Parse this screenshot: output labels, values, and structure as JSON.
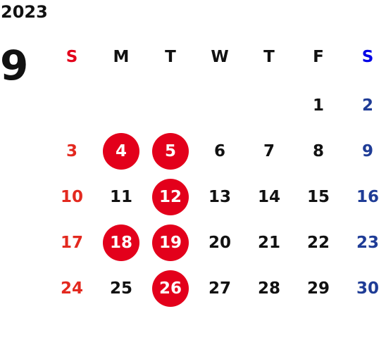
{
  "year": "2023",
  "month": "9",
  "weekdays": [
    {
      "label": "S",
      "kind": "sun"
    },
    {
      "label": "M",
      "kind": "wd"
    },
    {
      "label": "T",
      "kind": "wd"
    },
    {
      "label": "W",
      "kind": "wd"
    },
    {
      "label": "T",
      "kind": "wd"
    },
    {
      "label": "F",
      "kind": "wd"
    },
    {
      "label": "S",
      "kind": "sat"
    }
  ],
  "weeks": [
    [
      "",
      "",
      "",
      "",
      "",
      "1",
      "2"
    ],
    [
      "3",
      "4",
      "5",
      "6",
      "7",
      "8",
      "9"
    ],
    [
      "10",
      "11",
      "12",
      "13",
      "14",
      "15",
      "16"
    ],
    [
      "17",
      "18",
      "19",
      "20",
      "21",
      "22",
      "23"
    ],
    [
      "24",
      "25",
      "26",
      "27",
      "28",
      "29",
      "30"
    ]
  ],
  "highlighted_days": [
    "4",
    "5",
    "12",
    "18",
    "19",
    "26"
  ],
  "colors": {
    "text": "#111111",
    "sunday_header": "#e3001b",
    "saturday_header": "#0000e6",
    "sunday_date": "#e3291f",
    "saturday_date": "#1f3c96",
    "highlight": "#e3001b",
    "highlight_text": "#ffffff"
  }
}
